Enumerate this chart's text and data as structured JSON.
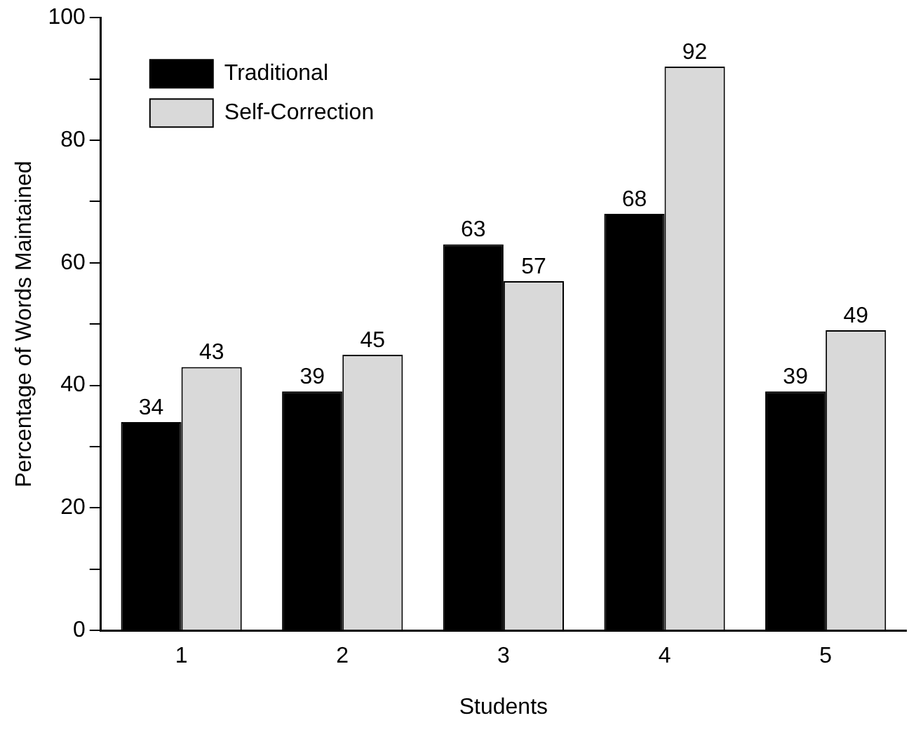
{
  "chart_data": {
    "type": "bar",
    "xlabel": "Students",
    "ylabel": "Percentage of Words Maintained",
    "categories": [
      "1",
      "2",
      "3",
      "4",
      "5"
    ],
    "series": [
      {
        "name": "Traditional",
        "color": "#000000",
        "values": [
          34,
          39,
          63,
          68,
          39
        ]
      },
      {
        "name": "Self-Correction",
        "color": "#d9d9d9",
        "values": [
          43,
          45,
          57,
          92,
          49
        ]
      }
    ],
    "ylim": [
      0,
      100
    ],
    "yticks": [
      0,
      {
        "value": 10,
        "label": null
      },
      20,
      {
        "value": 30,
        "label": null
      },
      40,
      {
        "value": 50,
        "label": null
      },
      60,
      {
        "value": 70,
        "label": null
      },
      80,
      {
        "value": 90,
        "label": null
      },
      100
    ],
    "data_labels": true,
    "legend": "top left",
    "grid": false
  }
}
